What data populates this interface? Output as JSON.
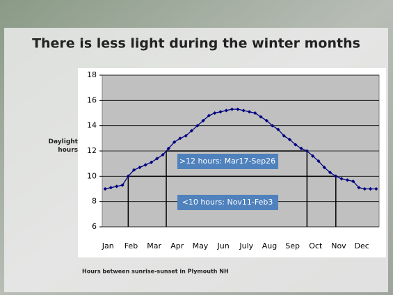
{
  "chart_data": {
    "type": "line",
    "title": "There is less light during the winter months",
    "y_label": "Daylight hours",
    "caption": "Hours between sunrise-sunset in Plymouth NH",
    "categories": [
      null,
      "Jan",
      null,
      null,
      null,
      "Feb",
      null,
      null,
      null,
      "Mar",
      null,
      null,
      null,
      "Apr",
      null,
      null,
      null,
      "May",
      null,
      null,
      null,
      "Jun",
      null,
      null,
      null,
      "July",
      null,
      null,
      null,
      "Aug",
      null,
      null,
      null,
      "Sep",
      null,
      null,
      null,
      "Oct",
      null,
      null,
      null,
      "Nov",
      null,
      null,
      null,
      "Dec",
      null,
      null
    ],
    "series": [
      {
        "name": "Daylight",
        "color": "#000080",
        "values": [
          9.0,
          9.1,
          9.2,
          9.3,
          10.0,
          10.5,
          10.7,
          10.9,
          11.1,
          11.4,
          11.7,
          12.2,
          12.7,
          13.0,
          13.2,
          13.6,
          14.0,
          14.4,
          14.8,
          15.0,
          15.1,
          15.2,
          15.3,
          15.3,
          15.2,
          15.1,
          15.0,
          14.7,
          14.4,
          14.0,
          13.7,
          13.2,
          12.9,
          12.5,
          12.2,
          12.0,
          11.6,
          11.2,
          10.7,
          10.3,
          10.0,
          9.8,
          9.7,
          9.6,
          9.1,
          9.0,
          9.0,
          9.0
        ]
      }
    ],
    "annotations": [
      {
        "text": ">12 hours: Mar17-Sep26",
        "threshold": 12
      },
      {
        "text": "<10 hours: Nov11-Feb3",
        "threshold": 10
      }
    ],
    "ylim": [
      6,
      18
    ],
    "yticks": [
      6,
      8,
      10,
      12,
      14,
      16,
      18
    ],
    "grid": true,
    "plot_color": "#c0c0c0",
    "box_color": "#4f81bd"
  }
}
